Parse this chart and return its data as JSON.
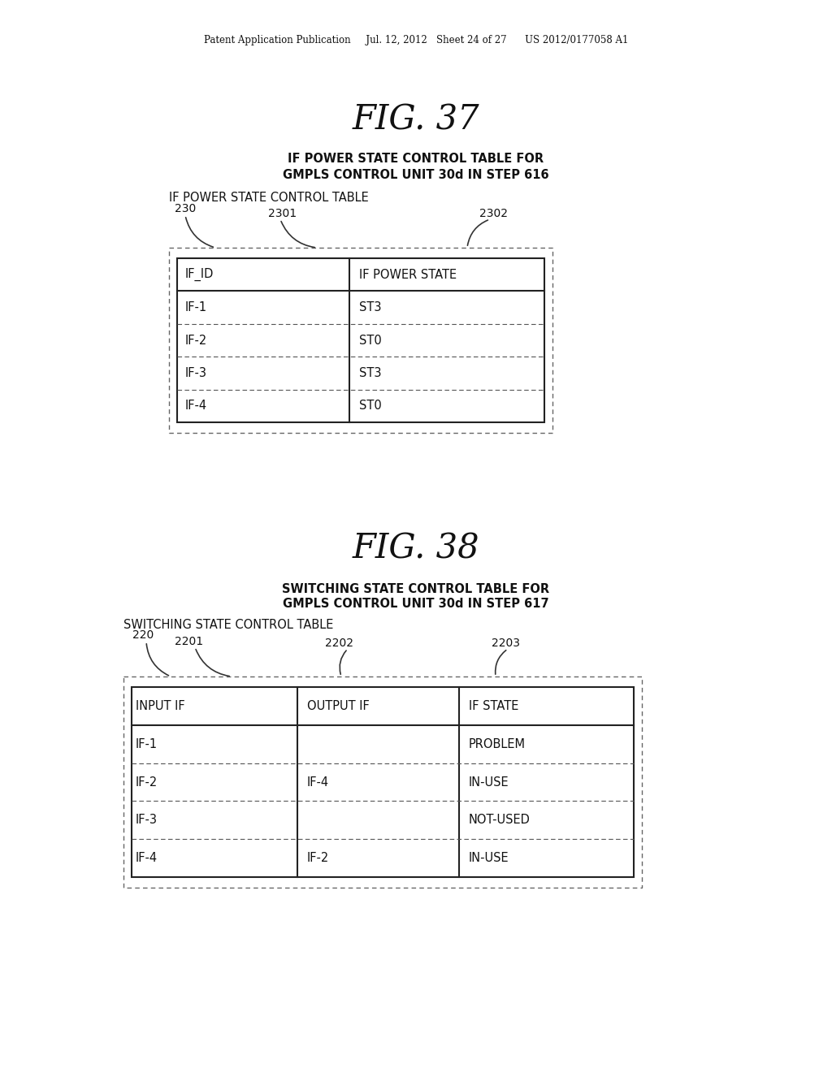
{
  "bg_color": "#ffffff",
  "header_text": "Patent Application Publication     Jul. 12, 2012   Sheet 24 of 27      US 2012/0177058 A1",
  "fig37_title": "FIG. 37",
  "fig37_subtitle_line1": "IF POWER STATE CONTROL TABLE FOR",
  "fig37_subtitle_line2": "GMPLS CONTROL UNIT 30d IN STEP 616",
  "fig37_table_label": "IF POWER STATE CONTROL TABLE",
  "fig37_label_230": "230",
  "fig37_label_2301": "2301",
  "fig37_label_2302": "2302",
  "fig37_col_headers": [
    "IF_ID",
    "IF POWER STATE"
  ],
  "fig37_rows": [
    [
      "IF-1",
      "ST3"
    ],
    [
      "IF-2",
      "ST0"
    ],
    [
      "IF-3",
      "ST3"
    ],
    [
      "IF-4",
      "ST0"
    ]
  ],
  "fig38_title": "FIG. 38",
  "fig38_subtitle_line1": "SWITCHING STATE CONTROL TABLE FOR",
  "fig38_subtitle_line2": "GMPLS CONTROL UNIT 30d IN STEP 617",
  "fig38_table_label": "SWITCHING STATE CONTROL TABLE",
  "fig38_label_220": "220",
  "fig38_label_2201": "2201",
  "fig38_label_2202": "2202",
  "fig38_label_2203": "2203",
  "fig38_col_headers": [
    "INPUT IF",
    "OUTPUT IF",
    "IF STATE"
  ],
  "fig38_rows": [
    [
      "IF-1",
      "",
      "PROBLEM"
    ],
    [
      "IF-2",
      "IF-4",
      "IN-USE"
    ],
    [
      "IF-3",
      "",
      "NOT-USED"
    ],
    [
      "IF-4",
      "IF-2",
      "IN-USE"
    ]
  ]
}
